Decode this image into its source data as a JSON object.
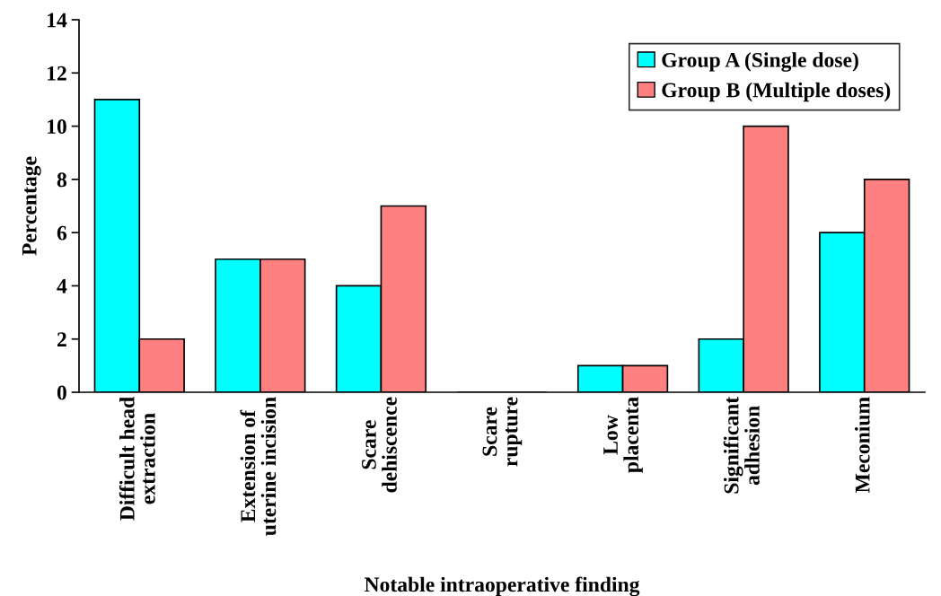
{
  "chart_data": {
    "type": "bar",
    "xlabel": "Notable intraoperative finding",
    "ylabel": "Percentage",
    "categories": [
      "Difficult head\nextraction",
      "Extension of\nuterine incision",
      "Scare\ndehiscence",
      "Scare\nrupture",
      "Low\nplacenta",
      "Significant\nadhesion",
      "Meconium"
    ],
    "series": [
      {
        "name": "Group A (Single dose)",
        "color": "#00ffff",
        "values": [
          11,
          5,
          4,
          0,
          1,
          2,
          6
        ]
      },
      {
        "name": "Group B (Multiple doses)",
        "color": "#ff8080",
        "values": [
          2,
          5,
          7,
          0,
          1,
          10,
          8
        ]
      }
    ],
    "ylim": [
      0,
      14
    ],
    "yticks": [
      0,
      2,
      4,
      6,
      8,
      10,
      12,
      14
    ],
    "grid": false,
    "legend": "top right"
  }
}
